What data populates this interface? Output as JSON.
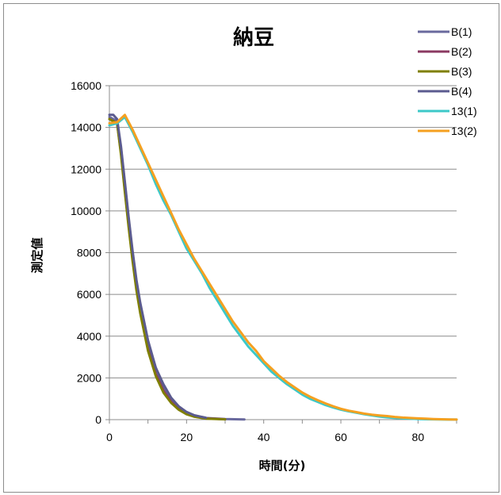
{
  "chart_data": {
    "type": "line",
    "title": "納豆",
    "xlabel": "時間(分)",
    "ylabel": "測定値",
    "xlim": [
      0,
      90
    ],
    "ylim": [
      0,
      16000
    ],
    "x_ticks": [
      0,
      20,
      40,
      60,
      80
    ],
    "y_ticks": [
      0,
      2000,
      4000,
      6000,
      8000,
      10000,
      12000,
      14000,
      16000
    ],
    "grid": "horizontal",
    "legend_position": "top-right",
    "series": [
      {
        "name": "B(1)",
        "color": "#6a6a9e",
        "x": [
          0,
          2,
          3,
          4,
          5,
          6,
          7,
          8,
          10,
          12,
          14,
          16,
          18,
          20,
          22,
          25,
          30,
          35
        ],
        "y": [
          14500,
          14300,
          13000,
          11300,
          9600,
          8000,
          6600,
          5500,
          3700,
          2500,
          1600,
          1000,
          600,
          350,
          200,
          80,
          30,
          10
        ]
      },
      {
        "name": "B(2)",
        "color": "#8b3a62",
        "x": [
          0,
          2,
          3,
          4,
          5,
          6,
          7,
          8,
          10,
          12,
          14,
          16,
          18,
          20,
          22,
          25,
          30
        ],
        "y": [
          14400,
          14200,
          12800,
          11000,
          9300,
          7700,
          6300,
          5200,
          3400,
          2200,
          1400,
          850,
          500,
          280,
          150,
          60,
          20
        ]
      },
      {
        "name": "B(3)",
        "color": "#7f7f00",
        "x": [
          0,
          2,
          3,
          4,
          5,
          6,
          7,
          8,
          10,
          12,
          14,
          16,
          18,
          20,
          22,
          25,
          30
        ],
        "y": [
          14400,
          14200,
          12700,
          10900,
          9200,
          7600,
          6200,
          5100,
          3300,
          2100,
          1300,
          800,
          470,
          260,
          140,
          50,
          15
        ]
      },
      {
        "name": "B(4)",
        "color": "#5b5b8f",
        "x": [
          0,
          1,
          2,
          3,
          4,
          5,
          6,
          7,
          8,
          10,
          12,
          14,
          16,
          18,
          20,
          22,
          25
        ],
        "y": [
          14600,
          14600,
          14400,
          13100,
          11400,
          9700,
          8100,
          6700,
          5600,
          3800,
          2500,
          1700,
          1050,
          630,
          370,
          210,
          90
        ]
      },
      {
        "name": "13(1)",
        "color": "#3cc8c8",
        "x": [
          0,
          2,
          4,
          6,
          8,
          10,
          12,
          14,
          16,
          18,
          20,
          22,
          24,
          26,
          28,
          30,
          32,
          34,
          36,
          38,
          40,
          42,
          44,
          46,
          48,
          50,
          52,
          54,
          56,
          58,
          60,
          62,
          64,
          66,
          68,
          70,
          72,
          74,
          76,
          78,
          80,
          82,
          84,
          86,
          88,
          90
        ],
        "y": [
          14100,
          14200,
          14500,
          13800,
          13000,
          12200,
          11300,
          10500,
          9800,
          9000,
          8200,
          7600,
          7000,
          6300,
          5700,
          5100,
          4500,
          4000,
          3500,
          3100,
          2700,
          2300,
          2000,
          1700,
          1450,
          1200,
          1000,
          850,
          700,
          580,
          480,
          400,
          330,
          260,
          200,
          150,
          110,
          80,
          60,
          45,
          30,
          20,
          15,
          10,
          5,
          5
        ]
      },
      {
        "name": "13(2)",
        "color": "#f5a020",
        "x": [
          0,
          2,
          4,
          6,
          8,
          10,
          12,
          14,
          16,
          18,
          20,
          22,
          24,
          26,
          28,
          30,
          32,
          34,
          36,
          38,
          40,
          42,
          44,
          46,
          48,
          50,
          52,
          54,
          56,
          58,
          60,
          62,
          64,
          66,
          68,
          70,
          72,
          74,
          76,
          78,
          80,
          82,
          84,
          86,
          88,
          90
        ],
        "y": [
          14200,
          14250,
          14600,
          13900,
          13100,
          12300,
          11500,
          10700,
          9900,
          9100,
          8400,
          7700,
          7100,
          6500,
          5900,
          5300,
          4700,
          4200,
          3700,
          3300,
          2800,
          2450,
          2100,
          1800,
          1550,
          1300,
          1100,
          930,
          780,
          640,
          520,
          430,
          360,
          290,
          240,
          200,
          170,
          130,
          100,
          80,
          60,
          45,
          30,
          20,
          10,
          5
        ]
      }
    ]
  }
}
